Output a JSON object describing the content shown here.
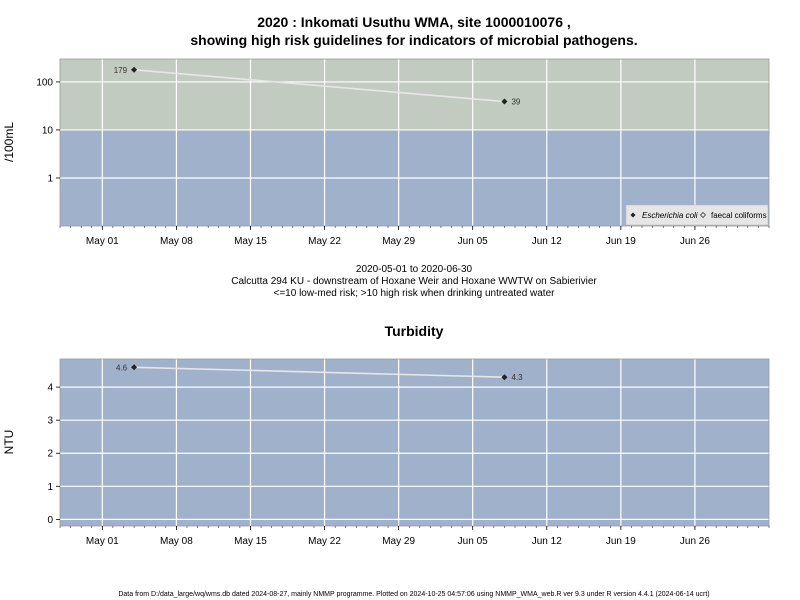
{
  "chart_data": [
    {
      "type": "line",
      "title_line1": "2020 : Inkomati Usuthu WMA, site 1000010076 ,",
      "title_line2": "showing high risk guidelines for indicators of microbial pathogens.",
      "ylabel": "/100mL",
      "yscale": "log",
      "ylim": [
        0.1,
        300
      ],
      "yticks": [
        1,
        10,
        100
      ],
      "ytick_labels": [
        "1",
        "10",
        "100"
      ],
      "x_range": [
        "2020-04-27",
        "2020-07-03"
      ],
      "xticks": [
        "2020-05-01",
        "2020-05-08",
        "2020-05-15",
        "2020-05-22",
        "2020-05-29",
        "2020-06-05",
        "2020-06-12",
        "2020-06-19",
        "2020-06-26"
      ],
      "xtick_labels": [
        "May 01",
        "May 08",
        "May 15",
        "May 22",
        "May 29",
        "Jun 05",
        "Jun 12",
        "Jun 19",
        "Jun 26"
      ],
      "grid": true,
      "bands": [
        {
          "from": 10,
          "to": 300,
          "color": "#c2cbbf"
        },
        {
          "from": 0.1,
          "to": 10,
          "color": "#a0b2cb"
        }
      ],
      "series": [
        {
          "name": "Escherichia coli",
          "marker": "diamond-filled",
          "x": [
            "2020-05-04",
            "2020-06-08"
          ],
          "y": [
            179,
            39
          ],
          "labels": [
            "179",
            "39"
          ]
        }
      ],
      "legend": {
        "position": "bottom-right",
        "entries": [
          {
            "label": "Escherichia coli",
            "italic": true,
            "marker": "diamond-filled"
          },
          {
            "label": "faecal coliforms",
            "italic": false,
            "marker": "diamond-open"
          }
        ]
      },
      "subtitle_lines": [
        "2020-05-01 to 2020-06-30",
        "Calcutta 294 KU - downstream of Hoxane Weir and Hoxane WWTW on Sabierivier",
        "<=10 low-med risk; >10 high risk when drinking untreated water"
      ]
    },
    {
      "type": "line",
      "title": "Turbidity",
      "ylabel": "NTU",
      "ylim": [
        -0.2,
        4.85
      ],
      "yticks": [
        0,
        1,
        2,
        3,
        4
      ],
      "ytick_labels": [
        "0",
        "1",
        "2",
        "3",
        "4"
      ],
      "x_range": [
        "2020-04-27",
        "2020-07-03"
      ],
      "xticks": [
        "2020-05-01",
        "2020-05-08",
        "2020-05-15",
        "2020-05-22",
        "2020-05-29",
        "2020-06-05",
        "2020-06-12",
        "2020-06-19",
        "2020-06-26"
      ],
      "xtick_labels": [
        "May 01",
        "May 08",
        "May 15",
        "May 22",
        "May 29",
        "Jun 05",
        "Jun 12",
        "Jun 19",
        "Jun 26"
      ],
      "grid": true,
      "background": "#a0b2cb",
      "series": [
        {
          "marker": "diamond-filled",
          "x": [
            "2020-05-04",
            "2020-06-08"
          ],
          "y": [
            4.6,
            4.3
          ],
          "labels": [
            "4.6",
            "4.3"
          ]
        }
      ]
    }
  ],
  "footer": "Data from D:/data_large/wq/wms.db dated 2024-08-27, mainly NMMP programme. Plotted on 2024-10-25 04:57:06 using NMMP_WMA_web.R ver 9.3 under R version 4.4.1 (2024-06-14 ucrt)"
}
